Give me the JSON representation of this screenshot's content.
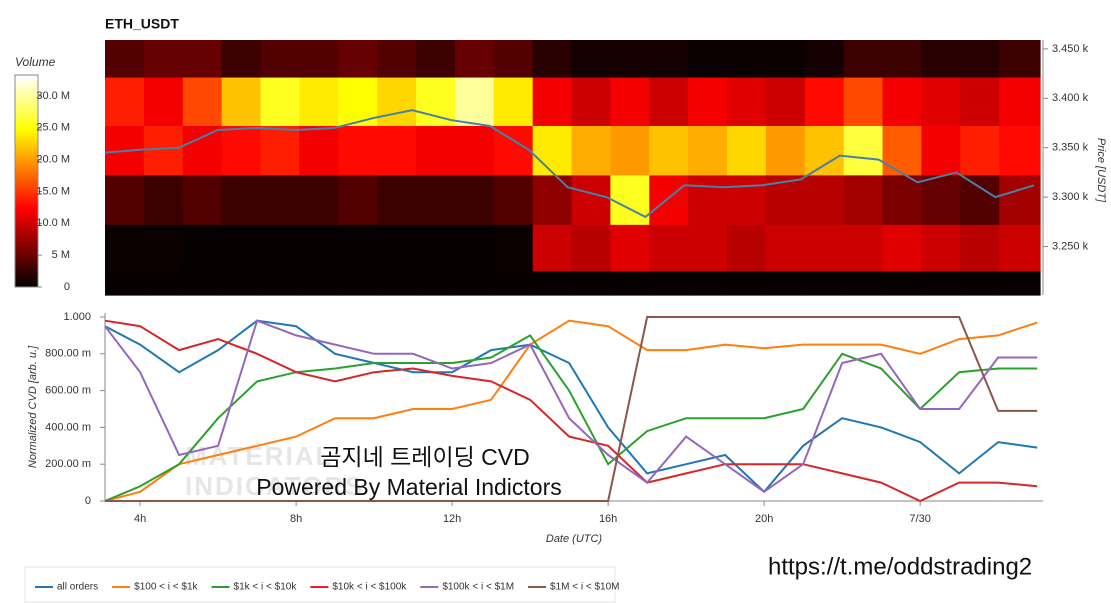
{
  "chart_data": [
    {
      "type": "heatmap",
      "title": "ETH_USDT",
      "ylabel": "Price [USDT]",
      "x_bins": [
        3.1,
        4.1,
        5.1,
        6.1,
        7.1,
        8.1,
        9.1,
        10.1,
        11.1,
        12.1,
        13.1,
        14.1,
        15.1,
        16.1,
        17.1,
        18.1,
        19.1,
        20.1,
        21.1,
        22.1,
        23.1,
        24.1,
        25.1,
        26.1,
        27.15
      ],
      "y_bins": [
        3459,
        3421,
        3372,
        3322,
        3272,
        3225,
        3201
      ],
      "z": [
        [
          4,
          5,
          5,
          3,
          4,
          4,
          5,
          4,
          3,
          5,
          4,
          2,
          1,
          1,
          1,
          0.5,
          0.5,
          0.5,
          1,
          3,
          3,
          2,
          2,
          3
        ],
        [
          14,
          12,
          16,
          22,
          26,
          24,
          25,
          23,
          26,
          30,
          24,
          12,
          10,
          12,
          10,
          12,
          11,
          10,
          13,
          16,
          12,
          11,
          10,
          12
        ],
        [
          12,
          14,
          12,
          13,
          14,
          12,
          13,
          13,
          12,
          12,
          13,
          24,
          21,
          20,
          22,
          21,
          23,
          20,
          22,
          27,
          17,
          12,
          14,
          13
        ],
        [
          4,
          3,
          4,
          3,
          3,
          3,
          4,
          3,
          3,
          3,
          4,
          7,
          10,
          26,
          12,
          10,
          10,
          9,
          9,
          8,
          6,
          5,
          4,
          8
        ],
        [
          0.5,
          0.5,
          0.3,
          0.3,
          0.3,
          0.3,
          0.3,
          0.3,
          0.3,
          0.3,
          0.5,
          10,
          9,
          11,
          10,
          10,
          9,
          10,
          10,
          10,
          11,
          10,
          9,
          10
        ],
        [
          0.3,
          0.3,
          0.3,
          0.3,
          0.3,
          0.3,
          0.3,
          0.3,
          0.3,
          0.3,
          0.3,
          0.3,
          0.3,
          0.3,
          0.3,
          0.3,
          0.3,
          0.3,
          0.3,
          0.3,
          0.3,
          0.3,
          0.3,
          0.3
        ]
      ],
      "xlim": [
        3.1,
        27.15
      ],
      "ylim": [
        3201,
        3459
      ],
      "yticks": [
        {
          "value": 3250,
          "label": "3.250 k"
        },
        {
          "value": 3300,
          "label": "3.300 k"
        },
        {
          "value": 3350,
          "label": "3.350 k"
        },
        {
          "value": 3400,
          "label": "3.400 k"
        },
        {
          "value": 3450,
          "label": "3.450 k"
        }
      ],
      "colorbar": {
        "title": "Volume",
        "lim": [
          0,
          33.3
        ],
        "ticks": [
          0,
          {
            "value": 5,
            "label": "5 M"
          },
          {
            "value": 10,
            "label": "10.0 M"
          },
          {
            "value": 15,
            "label": "15.0 M"
          },
          {
            "value": 20,
            "label": "20.0 M"
          },
          {
            "value": 25,
            "label": "25.0 M"
          },
          {
            "value": 30,
            "label": "30.0 M"
          }
        ]
      },
      "price_line": {
        "color": "#4a7fa8",
        "x": [
          3.1,
          4,
          5,
          6,
          7,
          8,
          9,
          10,
          11,
          12,
          13,
          14,
          15,
          16,
          17,
          18,
          19,
          20,
          21,
          22,
          23,
          24,
          25,
          26,
          27
        ],
        "values": [
          3345,
          3348,
          3350,
          3368,
          3370,
          3368,
          3370,
          3380,
          3388,
          3378,
          3372,
          3348,
          3310,
          3300,
          3280,
          3312,
          3310,
          3312,
          3318,
          3342,
          3338,
          3315,
          3325,
          3300,
          3312
        ]
      }
    },
    {
      "type": "line",
      "xlabel": "Date (UTC)",
      "ylabel": "Normalized CVD [arb. u.]",
      "grid": false,
      "x": [
        3.1,
        4,
        5,
        6,
        7,
        8,
        9,
        10,
        11,
        12,
        13,
        14,
        15,
        16,
        17,
        18,
        19,
        20,
        21,
        22,
        23,
        24,
        25,
        26,
        27
      ],
      "xlim": [
        3.1,
        27.15
      ],
      "ylim": [
        0,
        1
      ],
      "xticks": [
        {
          "value": 4,
          "label": "4h"
        },
        {
          "value": 8,
          "label": "8h"
        },
        {
          "value": 12,
          "label": "12h"
        },
        {
          "value": 16,
          "label": "16h"
        },
        {
          "value": 20,
          "label": "20h"
        },
        {
          "value": 24,
          "label": "7/30"
        }
      ],
      "yticks": [
        0,
        {
          "value": 0.2,
          "label": "200.00 m"
        },
        {
          "value": 0.4,
          "label": "400.00 m"
        },
        {
          "value": 0.6,
          "label": "600.00 m"
        },
        {
          "value": 0.8,
          "label": "800.00 m"
        },
        {
          "value": 1,
          "label": "1.000"
        }
      ],
      "series": [
        {
          "name": "all orders",
          "color": "#1f77b4",
          "values": [
            0.95,
            0.85,
            0.7,
            0.82,
            0.98,
            0.95,
            0.8,
            0.75,
            0.7,
            0.7,
            0.82,
            0.85,
            0.75,
            0.4,
            0.15,
            0.2,
            0.25,
            0.05,
            0.3,
            0.45,
            0.4,
            0.32,
            0.15,
            0.32,
            0.29
          ]
        },
        {
          "name": "$100 < i < $1k",
          "color": "#ff7f0e",
          "values": [
            0.0,
            0.05,
            0.2,
            0.25,
            0.3,
            0.35,
            0.45,
            0.45,
            0.5,
            0.5,
            0.55,
            0.85,
            0.98,
            0.95,
            0.82,
            0.82,
            0.85,
            0.83,
            0.85,
            0.85,
            0.85,
            0.8,
            0.88,
            0.9,
            0.97
          ]
        },
        {
          "name": "$1k < i < $10k",
          "color": "#2ca02c",
          "values": [
            0.0,
            0.08,
            0.2,
            0.45,
            0.65,
            0.7,
            0.72,
            0.75,
            0.75,
            0.75,
            0.78,
            0.9,
            0.6,
            0.2,
            0.38,
            0.45,
            0.45,
            0.45,
            0.5,
            0.8,
            0.72,
            0.5,
            0.7,
            0.72,
            0.72
          ]
        },
        {
          "name": "$10k < i < $100k",
          "color": "#d62728",
          "values": [
            0.98,
            0.95,
            0.82,
            0.88,
            0.8,
            0.7,
            0.65,
            0.7,
            0.72,
            0.68,
            0.65,
            0.55,
            0.35,
            0.3,
            0.1,
            0.15,
            0.2,
            0.2,
            0.2,
            0.15,
            0.1,
            0.0,
            0.1,
            0.1,
            0.08
          ]
        },
        {
          "name": "$100k < i < $1M",
          "color": "#9467bd",
          "values": [
            0.95,
            0.7,
            0.25,
            0.3,
            0.98,
            0.9,
            0.85,
            0.8,
            0.8,
            0.72,
            0.75,
            0.85,
            0.45,
            0.25,
            0.1,
            0.35,
            0.2,
            0.05,
            0.2,
            0.75,
            0.8,
            0.5,
            0.5,
            0.78,
            0.78
          ]
        },
        {
          "name": "$1M < i < $10M",
          "color": "#8c564b",
          "values": [
            0,
            0,
            0,
            0,
            0,
            0,
            0,
            0,
            0,
            0,
            0,
            0,
            0,
            0,
            1,
            1,
            1,
            1,
            1,
            1,
            1,
            1,
            1,
            0.49,
            0.49
          ]
        }
      ],
      "watermark": [
        "MATERIAL",
        "INDICATORS"
      ],
      "annotations": [
        "곰지네 트레이딩 CVD",
        "Powered By Material Indictors"
      ]
    }
  ],
  "link": "https://t.me/oddstrading2"
}
